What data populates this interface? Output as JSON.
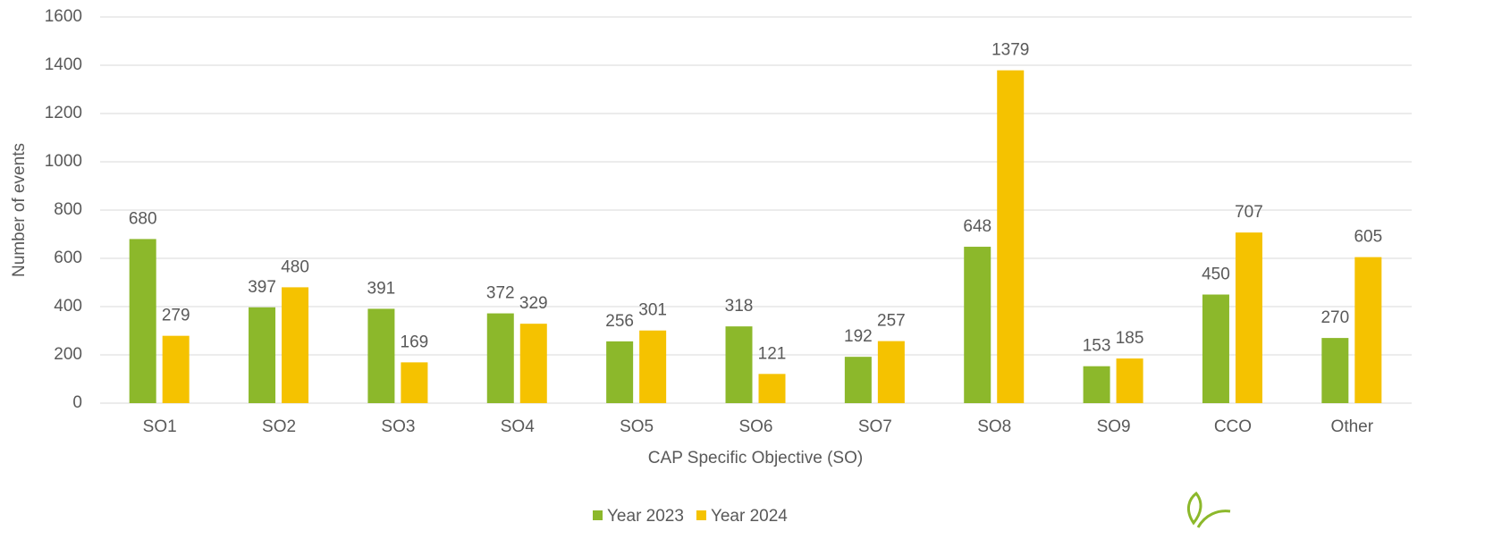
{
  "chart_data": {
    "type": "bar",
    "x_label": "CAP Specific Objective (SO)",
    "y_label": "Number of events",
    "categories": [
      "SO1",
      "SO2",
      "SO3",
      "SO4",
      "SO5",
      "SO6",
      "SO7",
      "SO8",
      "SO9",
      "CCO",
      "Other"
    ],
    "series": [
      {
        "name": "Year 2023",
        "color": "#8cb82b",
        "values": [
          680,
          397,
          391,
          372,
          256,
          318,
          192,
          648,
          153,
          450,
          270
        ]
      },
      {
        "name": "Year 2024",
        "color": "#f5c200",
        "values": [
          279,
          480,
          169,
          329,
          301,
          121,
          257,
          1379,
          185,
          707,
          605
        ]
      }
    ],
    "ylim": [
      0,
      1600
    ],
    "yticks": [
      0,
      200,
      400,
      600,
      800,
      1000,
      1200,
      1400,
      1600
    ],
    "grid": true,
    "legend": "bottom"
  }
}
